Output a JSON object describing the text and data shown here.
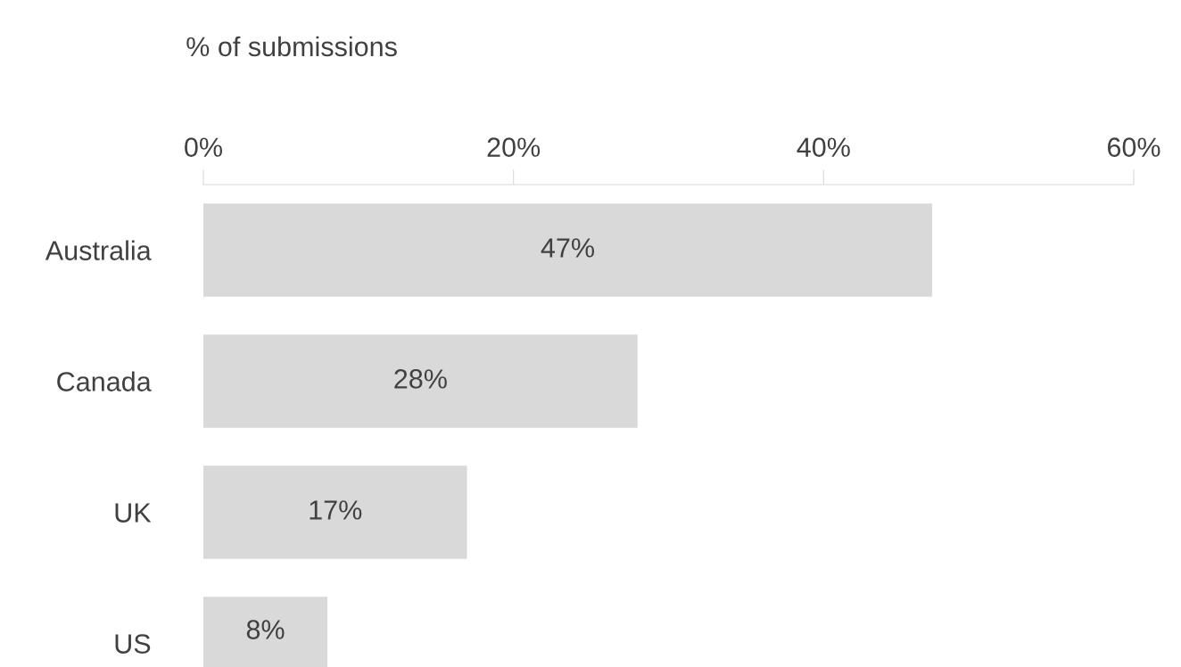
{
  "chart_data": {
    "type": "bar",
    "orientation": "horizontal",
    "xlabel": "% of submissions",
    "categories": [
      "Australia",
      "Canada",
      "UK",
      "US"
    ],
    "values": [
      47,
      28,
      17,
      8
    ],
    "value_labels": [
      "47%",
      "28%",
      "17%",
      "8%"
    ],
    "color": "#d9d9d9",
    "xlim": [
      0,
      60
    ],
    "xticks": [
      {
        "value": 0,
        "label": "0%"
      },
      {
        "value": 20,
        "label": "20%"
      },
      {
        "value": 40,
        "label": "40%"
      },
      {
        "value": 60,
        "label": "60%"
      }
    ],
    "grid": false,
    "legend": false
  }
}
